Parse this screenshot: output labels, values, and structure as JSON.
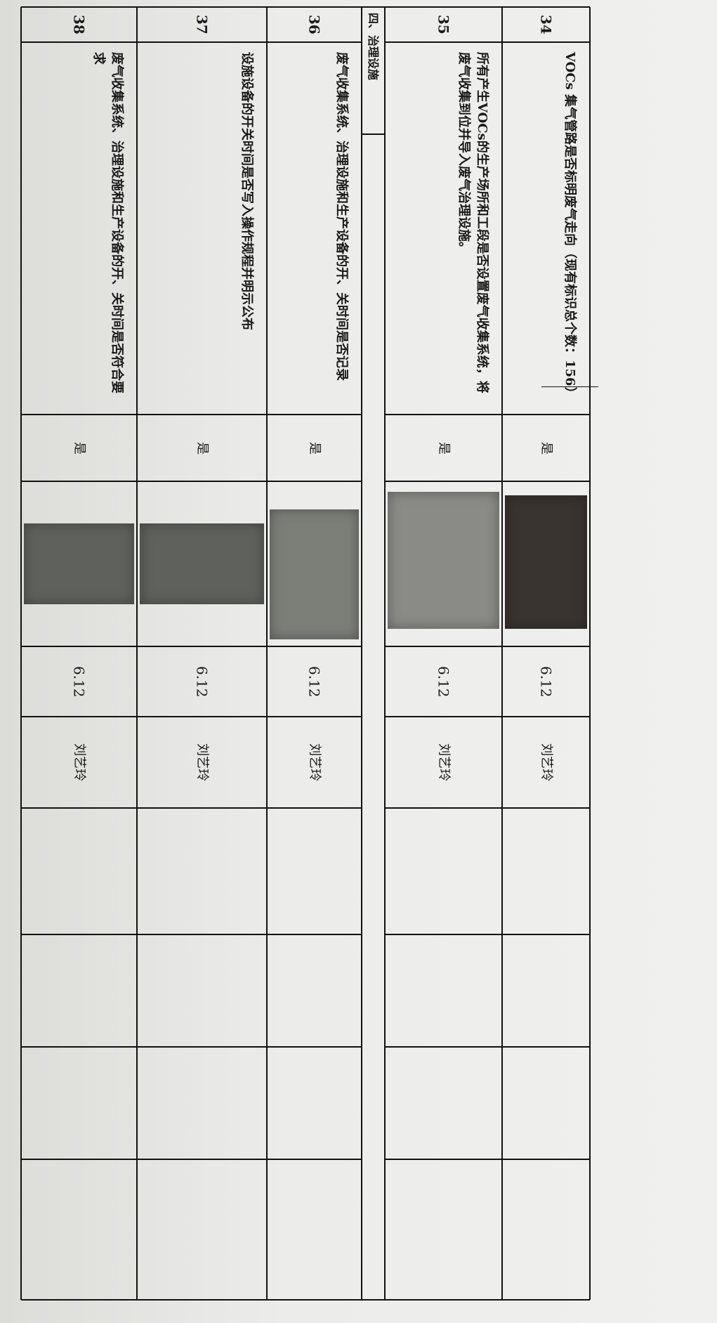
{
  "section": {
    "title": "四、治理设施"
  },
  "table": {
    "rows": [
      {
        "number": "34",
        "item": "VOCs 集气管路是否标明废气走向（现有标识总个数：",
        "count": "156",
        "item_end": "）",
        "answer": "是",
        "date": "6.12",
        "inspector": "刘艺玲"
      },
      {
        "number": "35",
        "item": "所有产生VOCs的生产场所和工段是否设置废气收集系统，将废气收集到位并导入废气治理设施。",
        "answer": "是",
        "date": "6.12",
        "inspector": "刘艺玲"
      },
      {
        "number": "36",
        "item": "废气收集系统、治理设施和生产设备的开、关时间是否记录",
        "answer": "是",
        "date": "6.12",
        "inspector": "刘艺玲"
      },
      {
        "number": "37",
        "item": "设施设备的开关时间是否写入操作规程并明示公布",
        "answer": "是",
        "date": "6.12",
        "inspector": "刘艺玲"
      },
      {
        "number": "38",
        "item": "废气收集系统、治理设施和生产设备的开、关时间是否符合要求",
        "answer": "是",
        "date": "6.12",
        "inspector": "刘艺玲"
      }
    ]
  }
}
